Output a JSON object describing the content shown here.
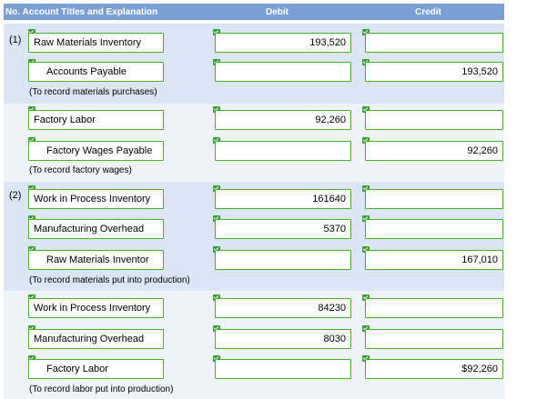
{
  "header": {
    "no": "No.",
    "titles": "Account Titles and Explanation",
    "debit": "Debit",
    "credit": "Credit"
  },
  "entries": [
    {
      "no": "(1)",
      "account": "Raw Materials Inventory",
      "debit": "193,520",
      "credit": ""
    },
    {
      "no": "",
      "account": "Accounts Payable",
      "debit": "",
      "credit": "193,520"
    },
    {
      "note": "(To record materials purchases)"
    },
    {
      "no": "",
      "account": "Factory Labor",
      "debit": "92,260",
      "credit": ""
    },
    {
      "no": "",
      "account": "Factory Wages Payable",
      "debit": "",
      "credit": "92,260"
    },
    {
      "note": "(To record factory wages)"
    },
    {
      "no": "(2)",
      "account": "Work in Process Inventory",
      "debit": "161640",
      "credit": ""
    },
    {
      "no": "",
      "account": "Manufacturing Overhead",
      "debit": "5370",
      "credit": ""
    },
    {
      "no": "",
      "account": "Raw Materials Inventor",
      "debit": "",
      "credit": "167,010"
    },
    {
      "note": "(To record materials put into production)"
    },
    {
      "no": "",
      "account": "Work in Process Inventory",
      "debit": "84230",
      "credit": ""
    },
    {
      "no": "",
      "account": "Manufacturing Overhead",
      "debit": "8030",
      "credit": ""
    },
    {
      "no": "",
      "account": "Factory Labor",
      "debit": "",
      "credit": "$92,260"
    },
    {
      "note": "(To record labor put into production)"
    }
  ],
  "colors": {
    "header_bg": "#7a9fd3",
    "band_shaded": "#dbe6f5",
    "band_light": "#eef3fa",
    "field_border": "#4caf2b",
    "check": "#33a12b"
  }
}
